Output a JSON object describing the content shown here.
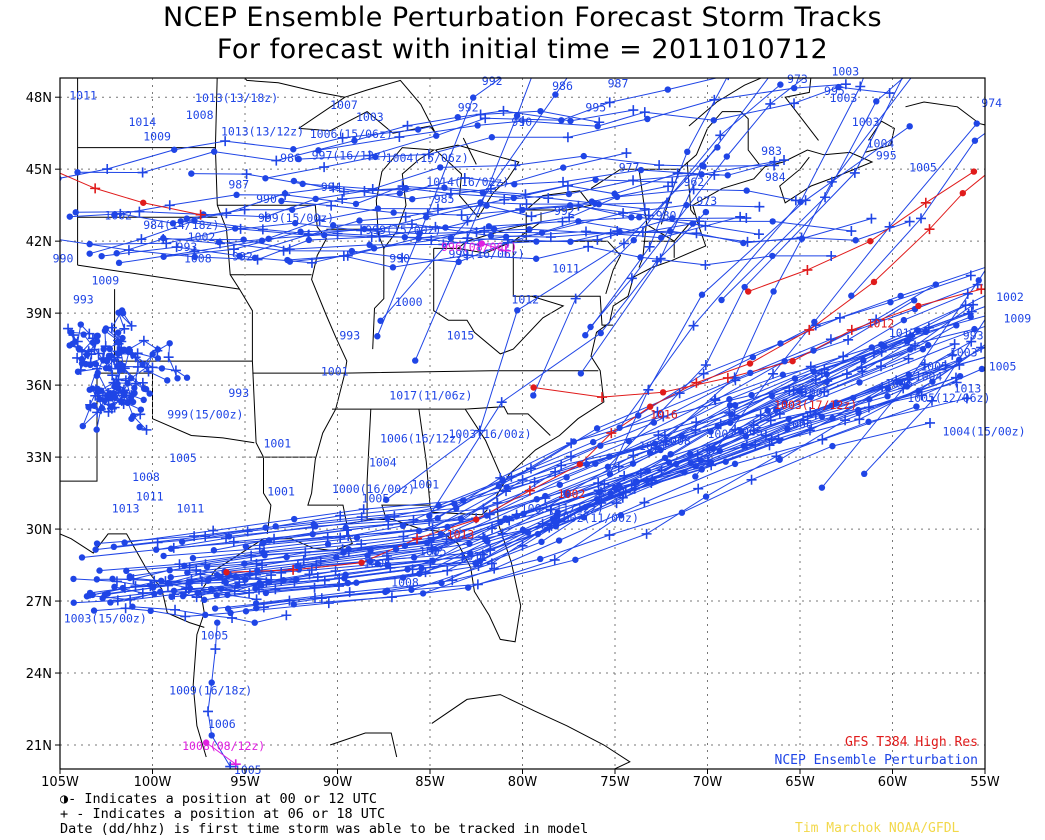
{
  "title": {
    "line1": "NCEP Ensemble Perturbation Forecast Storm Tracks",
    "line2": "For forecast with initial time = 2011010712"
  },
  "legend": {
    "gfs": "GFS T384 High Res",
    "ensemble": "NCEP Ensemble Perturbation",
    "colors": {
      "gfs": "#e01b1b",
      "ensemble": "#1f45e6",
      "special": "#e020e0"
    }
  },
  "notes": {
    "line1": "◑- Indicates a position at 00 or 12 UTC",
    "line2": "+ - Indicates a position at 06 or 18 UTC",
    "line3": "Date (dd/hhz) is first time storm was able to be tracked in model"
  },
  "credit": "Tim Marchok NOAA/GFDL",
  "map": {
    "lon_range": [
      -105,
      -55
    ],
    "lat_range": [
      20,
      48.8
    ],
    "lon_ticks": [
      "105W",
      "100W",
      "95W",
      "90W",
      "85W",
      "80W",
      "75W",
      "70W",
      "65W",
      "60W",
      "55W"
    ],
    "lat_ticks": [
      "21N",
      "24N",
      "27N",
      "30N",
      "33N",
      "36N",
      "39N",
      "42N",
      "45N",
      "48N"
    ]
  },
  "labels": [
    {
      "t": "1011",
      "lon": -104.5,
      "lat": 47.9,
      "c": "e"
    },
    {
      "t": "1014",
      "lon": -101.3,
      "lat": 46.8,
      "c": "e"
    },
    {
      "t": "1009",
      "lon": -100.5,
      "lat": 46.2,
      "c": "e"
    },
    {
      "t": "1008",
      "lon": -98.2,
      "lat": 47.1,
      "c": "e"
    },
    {
      "t": "1013(13/18z)",
      "lon": -97.7,
      "lat": 47.8,
      "c": "e"
    },
    {
      "t": "1013(13/12z)",
      "lon": -96.3,
      "lat": 46.4,
      "c": "e"
    },
    {
      "t": "1006(15/06z)",
      "lon": -91.5,
      "lat": 46.3,
      "c": "e"
    },
    {
      "t": "1007",
      "lon": -90.4,
      "lat": 47.5,
      "c": "e"
    },
    {
      "t": "1003",
      "lon": -89.0,
      "lat": 47.0,
      "c": "e"
    },
    {
      "t": "986",
      "lon": -93.1,
      "lat": 45.3,
      "c": "e"
    },
    {
      "t": "997(16/12z)",
      "lon": -91.4,
      "lat": 45.4,
      "c": "e"
    },
    {
      "t": "1004(15/06z)",
      "lon": -87.4,
      "lat": 45.3,
      "c": "e"
    },
    {
      "t": "987",
      "lon": -95.9,
      "lat": 44.2,
      "c": "e"
    },
    {
      "t": "990",
      "lon": -94.4,
      "lat": 43.6,
      "c": "e"
    },
    {
      "t": "994",
      "lon": -90.9,
      "lat": 44.1,
      "c": "e"
    },
    {
      "t": "1014(16/02z)",
      "lon": -85.2,
      "lat": 44.3,
      "c": "e"
    },
    {
      "t": "985",
      "lon": -84.8,
      "lat": 43.6,
      "c": "e"
    },
    {
      "t": "1002",
      "lon": -102.6,
      "lat": 42.9,
      "c": "e"
    },
    {
      "t": "984(14/18z)",
      "lon": -100.5,
      "lat": 42.5,
      "c": "e"
    },
    {
      "t": "1002",
      "lon": -98.1,
      "lat": 42.0,
      "c": "e"
    },
    {
      "t": "999(15/00z)",
      "lon": -94.3,
      "lat": 42.8,
      "c": "e"
    },
    {
      "t": "993",
      "lon": -98.7,
      "lat": 41.6,
      "c": "e"
    },
    {
      "t": "1008",
      "lon": -98.3,
      "lat": 41.1,
      "c": "e"
    },
    {
      "t": "992",
      "lon": -95.7,
      "lat": 41.2,
      "c": "e"
    },
    {
      "t": "999(15/00z)",
      "lon": -88.5,
      "lat": 42.3,
      "c": "e"
    },
    {
      "t": "990",
      "lon": -87.2,
      "lat": 41.1,
      "c": "e"
    },
    {
      "t": "999(16/06z)",
      "lon": -84.0,
      "lat": 41.3,
      "c": "e"
    },
    {
      "t": "1011",
      "lon": -78.4,
      "lat": 40.7,
      "c": "e"
    },
    {
      "t": "1012",
      "lon": -80.6,
      "lat": 39.4,
      "c": "e"
    },
    {
      "t": "1000",
      "lon": -86.9,
      "lat": 39.3,
      "c": "e"
    },
    {
      "t": "993",
      "lon": -89.9,
      "lat": 37.9,
      "c": "e"
    },
    {
      "t": "1015",
      "lon": -84.1,
      "lat": 37.9,
      "c": "e"
    },
    {
      "t": "1001",
      "lon": -90.9,
      "lat": 36.4,
      "c": "e"
    },
    {
      "t": "1017(11/06z)",
      "lon": -87.2,
      "lat": 35.4,
      "c": "e"
    },
    {
      "t": "993",
      "lon": -95.9,
      "lat": 35.5,
      "c": "e"
    },
    {
      "t": "1009",
      "lon": -103.3,
      "lat": 40.2,
      "c": "e"
    },
    {
      "t": "993",
      "lon": -104.3,
      "lat": 39.4,
      "c": "e"
    },
    {
      "t": "990",
      "lon": -105.4,
      "lat": 41.1,
      "c": "e"
    },
    {
      "t": "999(15/00z)",
      "lon": -99.2,
      "lat": 34.6,
      "c": "e"
    },
    {
      "t": "1001",
      "lon": -94.0,
      "lat": 33.4,
      "c": "e"
    },
    {
      "t": "1005",
      "lon": -99.1,
      "lat": 32.8,
      "c": "e"
    },
    {
      "t": "1008",
      "lon": -101.1,
      "lat": 32.0,
      "c": "e"
    },
    {
      "t": "1011",
      "lon": -100.9,
      "lat": 31.2,
      "c": "e"
    },
    {
      "t": "1013",
      "lon": -102.2,
      "lat": 30.7,
      "c": "e"
    },
    {
      "t": "1011",
      "lon": -98.7,
      "lat": 30.7,
      "c": "e"
    },
    {
      "t": "1001",
      "lon": -93.8,
      "lat": 31.4,
      "c": "e"
    },
    {
      "t": "1006(16/12z)",
      "lon": -87.7,
      "lat": 33.6,
      "c": "e"
    },
    {
      "t": "1003(16/00z)",
      "lon": -84.0,
      "lat": 33.8,
      "c": "e"
    },
    {
      "t": "1004",
      "lon": -88.3,
      "lat": 32.6,
      "c": "e"
    },
    {
      "t": "1000(16/00z)",
      "lon": -90.3,
      "lat": 31.5,
      "c": "e"
    },
    {
      "t": "1005",
      "lon": -88.7,
      "lat": 31.1,
      "c": "e"
    },
    {
      "t": "1001",
      "lon": -86.0,
      "lat": 31.7,
      "c": "e"
    },
    {
      "t": "1007",
      "lon": -70.0,
      "lat": 33.8,
      "c": "e"
    },
    {
      "t": "1005",
      "lon": -68.5,
      "lat": 33.9,
      "c": "e"
    },
    {
      "t": "1006",
      "lon": -65.8,
      "lat": 34.2,
      "c": "e"
    },
    {
      "t": "1008",
      "lon": -72.4,
      "lat": 33.5,
      "c": "e"
    },
    {
      "t": "1011",
      "lon": -73.7,
      "lat": 33.3,
      "c": "e"
    },
    {
      "t": "1006",
      "lon": -64.9,
      "lat": 35.5,
      "c": "e"
    },
    {
      "t": "1006",
      "lon": -60.4,
      "lat": 35.9,
      "c": "e"
    },
    {
      "t": "1004",
      "lon": -58.8,
      "lat": 36.2,
      "c": "e"
    },
    {
      "t": "1005",
      "lon": -58.5,
      "lat": 36.6,
      "c": "e"
    },
    {
      "t": "1013",
      "lon": -56.7,
      "lat": 35.7,
      "c": "e"
    },
    {
      "t": "1005(12/06z)",
      "lon": -59.2,
      "lat": 35.3,
      "c": "e"
    },
    {
      "t": "1004(15/00z)",
      "lon": -57.3,
      "lat": 33.9,
      "c": "e"
    },
    {
      "t": "1005",
      "lon": -54.8,
      "lat": 36.6,
      "c": "e"
    },
    {
      "t": "1003",
      "lon": -56.9,
      "lat": 37.2,
      "c": "e"
    },
    {
      "t": "993",
      "lon": -56.2,
      "lat": 37.9,
      "c": "e"
    },
    {
      "t": "1017",
      "lon": -60.2,
      "lat": 38.0,
      "c": "e"
    },
    {
      "t": "1002",
      "lon": -54.4,
      "lat": 39.5,
      "c": "e"
    },
    {
      "t": "1009",
      "lon": -54.0,
      "lat": 38.6,
      "c": "e"
    },
    {
      "t": "1003",
      "lon": -63.4,
      "lat": 47.8,
      "c": "e"
    },
    {
      "t": "1003",
      "lon": -62.2,
      "lat": 46.8,
      "c": "e"
    },
    {
      "t": "1004",
      "lon": -61.4,
      "lat": 45.9,
      "c": "e"
    },
    {
      "t": "995",
      "lon": -60.9,
      "lat": 45.4,
      "c": "e"
    },
    {
      "t": "977",
      "lon": -74.8,
      "lat": 44.9,
      "c": "e"
    },
    {
      "t": "962",
      "lon": -71.3,
      "lat": 44.3,
      "c": "e"
    },
    {
      "t": "973",
      "lon": -70.6,
      "lat": 43.5,
      "c": "e"
    },
    {
      "t": "980",
      "lon": -72.8,
      "lat": 42.9,
      "c": "e"
    },
    {
      "t": "992",
      "lon": -78.3,
      "lat": 43.1,
      "c": "e"
    },
    {
      "t": "992",
      "lon": -83.5,
      "lat": 47.4,
      "c": "e"
    },
    {
      "t": "992",
      "lon": -82.2,
      "lat": 48.5,
      "c": "e"
    },
    {
      "t": "990",
      "lon": -80.6,
      "lat": 46.8,
      "c": "e"
    },
    {
      "t": "995",
      "lon": -76.6,
      "lat": 47.4,
      "c": "e"
    },
    {
      "t": "986",
      "lon": -78.4,
      "lat": 48.3,
      "c": "e"
    },
    {
      "t": "987",
      "lon": -75.4,
      "lat": 48.4,
      "c": "e"
    },
    {
      "t": "983",
      "lon": -67.1,
      "lat": 45.6,
      "c": "e"
    },
    {
      "t": "984",
      "lon": -66.9,
      "lat": 44.5,
      "c": "e"
    },
    {
      "t": "1005",
      "lon": -59.1,
      "lat": 44.9,
      "c": "e"
    },
    {
      "t": "974",
      "lon": -55.2,
      "lat": 47.6,
      "c": "e"
    },
    {
      "t": "973",
      "lon": -65.7,
      "lat": 48.6,
      "c": "e"
    },
    {
      "t": "995",
      "lon": -63.7,
      "lat": 48.1,
      "c": "e"
    },
    {
      "t": "1003",
      "lon": -63.3,
      "lat": 48.9,
      "c": "e"
    },
    {
      "t": "1003(15/00z)",
      "lon": -104.8,
      "lat": 26.1,
      "c": "e"
    },
    {
      "t": "1005",
      "lon": -97.4,
      "lat": 25.4,
      "c": "e"
    },
    {
      "t": "1009(16/18z)",
      "lon": -99.1,
      "lat": 23.1,
      "c": "e"
    },
    {
      "t": "1006",
      "lon": -97.0,
      "lat": 21.7,
      "c": "e"
    },
    {
      "t": "1008(08/12z)",
      "lon": -98.4,
      "lat": 20.8,
      "c": "s"
    },
    {
      "t": "1005",
      "lon": -95.6,
      "lat": 19.8,
      "c": "e"
    },
    {
      "t": "996(08/06z)",
      "lon": -84.4,
      "lat": 41.6,
      "c": "s"
    },
    {
      "t": "1002(11/00z)",
      "lon": -78.2,
      "lat": 30.3,
      "c": "e"
    },
    {
      "t": "1005",
      "lon": -85.6,
      "lat": 28.9,
      "c": "e"
    },
    {
      "t": "1006",
      "lon": -88.6,
      "lat": 28.4,
      "c": "e"
    },
    {
      "t": "1011",
      "lon": -83.4,
      "lat": 28.7,
      "c": "e"
    },
    {
      "t": "1008",
      "lon": -87.1,
      "lat": 27.6,
      "c": "e"
    },
    {
      "t": "1003(11/12z)",
      "lon": -80.1,
      "lat": 30.7,
      "c": "e"
    },
    {
      "t": "1003(17/12z)",
      "lon": -66.4,
      "lat": 35.0,
      "c": "g"
    },
    {
      "t": "1012",
      "lon": -61.4,
      "lat": 38.4,
      "c": "g"
    },
    {
      "t": "1016",
      "lon": -73.1,
      "lat": 34.6,
      "c": "g"
    },
    {
      "t": "1013",
      "lon": -84.1,
      "lat": 29.6,
      "c": "g"
    },
    {
      "t": "1002",
      "lon": -78.1,
      "lat": 31.3,
      "c": "g"
    }
  ]
}
